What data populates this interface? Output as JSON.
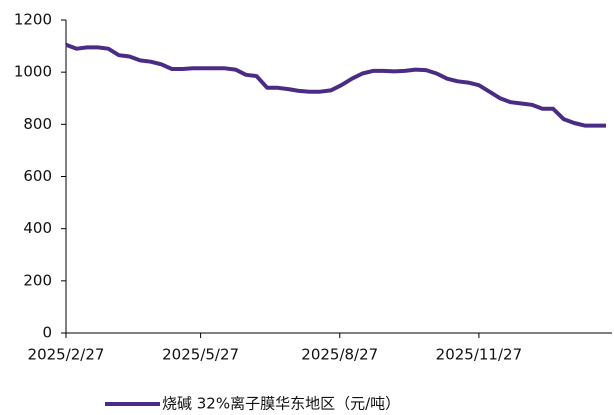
{
  "chart_data": {
    "type": "line",
    "x": [
      "2025/2/27",
      "2025/3/6",
      "2025/3/13",
      "2025/3/20",
      "2025/3/27",
      "2025/4/3",
      "2025/4/10",
      "2025/4/17",
      "2025/4/24",
      "2025/5/1",
      "2025/5/8",
      "2025/5/15",
      "2025/5/22",
      "2025/5/29",
      "2025/6/5",
      "2025/6/12",
      "2025/6/19",
      "2025/6/26",
      "2025/7/3",
      "2025/7/10",
      "2025/7/17",
      "2025/7/24",
      "2025/7/31",
      "2025/8/7",
      "2025/8/14",
      "2025/8/21",
      "2025/8/28",
      "2025/9/4",
      "2025/9/11",
      "2025/9/18",
      "2025/9/25",
      "2025/10/2",
      "2025/10/9",
      "2025/10/16",
      "2025/10/23",
      "2025/10/30",
      "2025/11/6",
      "2025/11/13",
      "2025/11/20",
      "2025/11/27",
      "2025/12/4",
      "2025/12/11",
      "2025/12/18",
      "2025/12/25",
      "2026/1/1",
      "2026/1/8",
      "2026/1/15",
      "2026/1/22",
      "2026/1/29",
      "2026/2/5",
      "2026/2/12",
      "2026/2/19"
    ],
    "series": [
      {
        "name": "烧碱 32%离子膜华东地区（元/吨）",
        "color": "#4b2c85",
        "values": [
          1105,
          1090,
          1095,
          1095,
          1090,
          1065,
          1060,
          1045,
          1040,
          1030,
          1012,
          1012,
          1015,
          1015,
          1015,
          1015,
          1010,
          990,
          985,
          940,
          940,
          935,
          928,
          925,
          925,
          930,
          950,
          975,
          995,
          1005,
          1005,
          1003,
          1005,
          1010,
          1008,
          995,
          975,
          965,
          960,
          950,
          925,
          900,
          885,
          880,
          875,
          860,
          860,
          820,
          805,
          795,
          795,
          795
        ]
      }
    ],
    "xlim": [
      "2025/2/27",
      "2026/2/23"
    ],
    "xticks": [
      "2025/2/27",
      "2025/5/27",
      "2025/8/27",
      "2025/11/27"
    ],
    "ylim": [
      0,
      1200
    ],
    "yticks": [
      0,
      200,
      400,
      600,
      800,
      1000,
      1200
    ],
    "legend": "bottom"
  }
}
